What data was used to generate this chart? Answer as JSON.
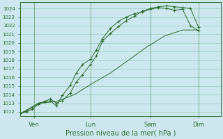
{
  "xlabel": "Pression niveau de la mer( hPa )",
  "background_color": "#cce8ee",
  "grid_color": "#99ccbb",
  "line_color": "#2d6a2d",
  "vline_color": "#99aabb",
  "ylim": [
    1011.5,
    1024.7
  ],
  "yticks": [
    1012,
    1013,
    1014,
    1015,
    1016,
    1017,
    1018,
    1019,
    1020,
    1021,
    1022,
    1023,
    1024
  ],
  "xtick_labels": [
    "Ven",
    "Lun",
    "Sam",
    "Dim"
  ],
  "xtick_positions": [
    0.07,
    0.35,
    0.65,
    0.89
  ],
  "series1_x": [
    0.0,
    0.03,
    0.06,
    0.09,
    0.12,
    0.15,
    0.18,
    0.21,
    0.25,
    0.28,
    0.31,
    0.35,
    0.38,
    0.41,
    0.45,
    0.49,
    0.53,
    0.57,
    0.61,
    0.65,
    0.69,
    0.73,
    0.77,
    0.81,
    0.85,
    0.89
  ],
  "series1_y": [
    1011.8,
    1012.1,
    1012.5,
    1013.0,
    1013.2,
    1013.5,
    1013.0,
    1013.3,
    1014.2,
    1015.5,
    1016.3,
    1017.5,
    1018.5,
    1020.2,
    1021.1,
    1021.9,
    1022.6,
    1023.1,
    1023.7,
    1024.0,
    1024.2,
    1024.3,
    1024.2,
    1024.1,
    1024.0,
    1021.8
  ],
  "series2_x": [
    0.0,
    0.03,
    0.06,
    0.09,
    0.12,
    0.15,
    0.18,
    0.21,
    0.25,
    0.28,
    0.31,
    0.35,
    0.38,
    0.41,
    0.45,
    0.49,
    0.53,
    0.57,
    0.61,
    0.65,
    0.69,
    0.73,
    0.77,
    0.81,
    0.85,
    0.89
  ],
  "series2_y": [
    1011.8,
    1012.0,
    1012.3,
    1012.9,
    1013.1,
    1013.3,
    1012.7,
    1013.9,
    1015.1,
    1016.5,
    1017.5,
    1018.1,
    1019.2,
    1020.5,
    1021.7,
    1022.5,
    1023.0,
    1023.4,
    1023.6,
    1023.9,
    1024.1,
    1024.0,
    1023.8,
    1023.9,
    1022.0,
    1021.4
  ],
  "series3_x": [
    0.0,
    0.09,
    0.18,
    0.27,
    0.36,
    0.45,
    0.54,
    0.63,
    0.72,
    0.81,
    0.89
  ],
  "series3_y": [
    1011.8,
    1013.0,
    1013.2,
    1014.0,
    1015.3,
    1016.5,
    1018.0,
    1019.5,
    1020.8,
    1021.5,
    1021.5
  ]
}
